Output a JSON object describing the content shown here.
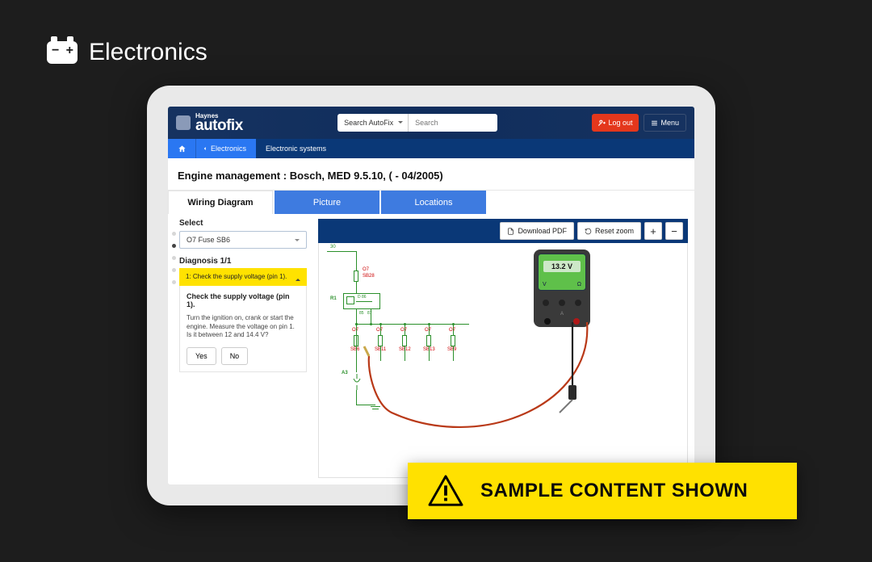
{
  "category": {
    "title": "Electronics"
  },
  "app": {
    "brand_small": "Haynes",
    "brand_big": "autofix",
    "search_scope": "Search AutoFix",
    "search_placeholder": "Search",
    "logout": "Log out",
    "menu": "Menu"
  },
  "breadcrumb": {
    "back_label": "Electronics",
    "current": "Electronic systems"
  },
  "page": {
    "title_label": "Engine management :",
    "title_value": "Bosch, MED 9.5.10, ( - 04/2005)"
  },
  "tabs": {
    "wiring": "Wiring Diagram",
    "picture": "Picture",
    "locations": "Locations"
  },
  "left": {
    "select_label": "Select",
    "select_value": "O7  Fuse  SB6",
    "diagnosis_title": "Diagnosis 1/1",
    "accordion_head": "1: Check the supply voltage (pin 1).",
    "step_heading": "Check the supply voltage (pin 1).",
    "step_body": "Turn the ignition on, crank or start the engine. Measure the voltage on pin 1. Is it between 12 and 14.4 V?",
    "yes": "Yes",
    "no": "No"
  },
  "toolbar": {
    "download": "Download PDF",
    "reset": "Reset zoom",
    "zoom_in": "+",
    "zoom_out": "−"
  },
  "diagram": {
    "top_label": "30",
    "fuse_main": {
      "top": "O7",
      "bottom": "SB28"
    },
    "relay_label": "R1",
    "relay_pin": "D  86",
    "fuse_row": [
      {
        "top": "O7",
        "bottom": "SB6"
      },
      {
        "top": "O7",
        "bottom": "SB11"
      },
      {
        "top": "O7",
        "bottom": "SB12"
      },
      {
        "top": "O7",
        "bottom": "SB13"
      },
      {
        "top": "O7",
        "bottom": "SB9"
      }
    ],
    "ground_label": "A3",
    "small_num_85": "85",
    "small_num_87": "87",
    "wire_color": "#2a8f2a",
    "label_color": "#cc0000"
  },
  "meter": {
    "reading": "13.2 V"
  },
  "banner": {
    "text": "SAMPLE CONTENT SHOWN"
  },
  "colors": {
    "page_bg": "#1d1d1d",
    "header_bg": "#0c2a59",
    "breadcrumb_bg": "#0a3877",
    "breadcrumb_active": "#2a77f2",
    "tab_inactive": "#3e7be0",
    "accent_red": "#e4371c",
    "highlight_yellow": "#ffe200",
    "banner_yellow": "#ffe100"
  }
}
